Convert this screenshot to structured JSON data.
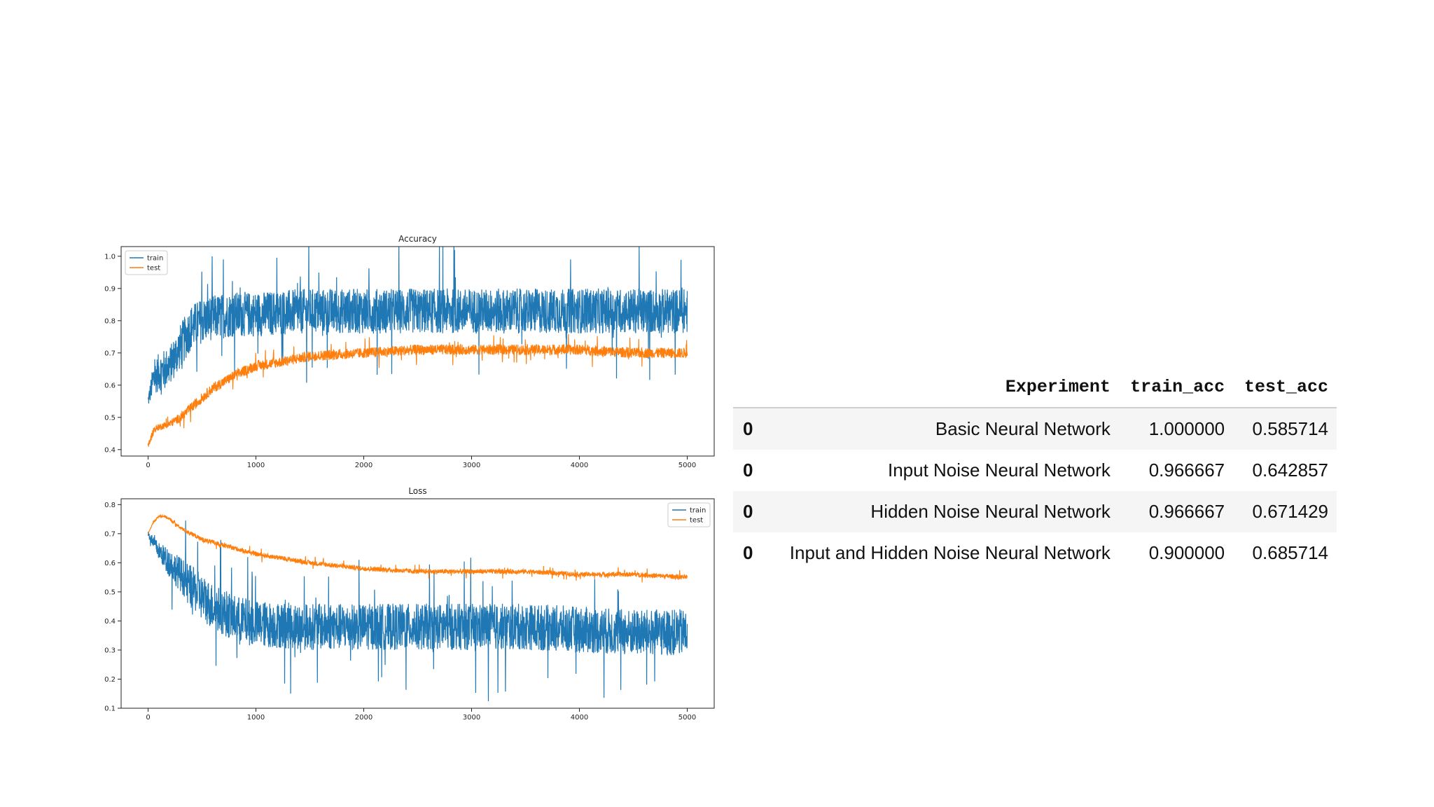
{
  "chart_data": [
    {
      "type": "line",
      "title": "Accuracy",
      "xlabel": "",
      "ylabel": "",
      "xlim": [
        -250,
        5250
      ],
      "ylim": [
        0.38,
        1.03
      ],
      "xticks": [
        0,
        1000,
        2000,
        3000,
        4000,
        5000
      ],
      "yticks": [
        0.4,
        0.5,
        0.6,
        0.7,
        0.8,
        0.9,
        1.0
      ],
      "xtick_labels": [
        "0",
        "1000",
        "2000",
        "3000",
        "4000",
        "5000"
      ],
      "ytick_labels": [
        "0.4",
        "0.5",
        "0.6",
        "0.7",
        "0.8",
        "0.9",
        "1.0"
      ],
      "legend_position": "upper-left",
      "series": [
        {
          "name": "train",
          "color": "#1f77b4",
          "x": [
            0,
            50,
            100,
            200,
            300,
            400,
            500,
            600,
            800,
            1000,
            1500,
            2000,
            2500,
            3000,
            3500,
            4000,
            4500,
            5000
          ],
          "y": [
            0.55,
            0.62,
            0.64,
            0.66,
            0.72,
            0.78,
            0.8,
            0.81,
            0.82,
            0.82,
            0.83,
            0.83,
            0.83,
            0.83,
            0.83,
            0.83,
            0.83,
            0.83
          ],
          "noise": [
            0.02,
            0.05,
            0.06,
            0.06,
            0.07,
            0.07,
            0.07,
            0.07,
            0.07,
            0.07,
            0.07,
            0.07,
            0.07,
            0.07,
            0.07,
            0.07,
            0.07,
            0.07
          ]
        },
        {
          "name": "test",
          "color": "#ff7f0e",
          "x": [
            0,
            50,
            100,
            200,
            300,
            400,
            500,
            600,
            800,
            1000,
            1200,
            1500,
            2000,
            2500,
            3000,
            3500,
            4000,
            4500,
            5000
          ],
          "y": [
            0.41,
            0.46,
            0.47,
            0.48,
            0.5,
            0.53,
            0.56,
            0.59,
            0.63,
            0.66,
            0.67,
            0.69,
            0.7,
            0.71,
            0.71,
            0.71,
            0.71,
            0.7,
            0.7
          ],
          "noise": [
            0.01,
            0.01,
            0.01,
            0.012,
            0.014,
            0.016,
            0.016,
            0.016,
            0.016,
            0.016,
            0.016,
            0.016,
            0.016,
            0.016,
            0.016,
            0.016,
            0.016,
            0.016,
            0.016
          ]
        }
      ]
    },
    {
      "type": "line",
      "title": "Loss",
      "xlabel": "",
      "ylabel": "",
      "xlim": [
        -250,
        5250
      ],
      "ylim": [
        0.1,
        0.82
      ],
      "xticks": [
        0,
        1000,
        2000,
        3000,
        4000,
        5000
      ],
      "yticks": [
        0.1,
        0.2,
        0.3,
        0.4,
        0.5,
        0.6,
        0.7,
        0.8
      ],
      "xtick_labels": [
        "0",
        "1000",
        "2000",
        "3000",
        "4000",
        "5000"
      ],
      "ytick_labels": [
        "0.1",
        "0.2",
        "0.3",
        "0.4",
        "0.5",
        "0.6",
        "0.7",
        "0.8"
      ],
      "legend_position": "upper-right",
      "series": [
        {
          "name": "train",
          "color": "#1f77b4",
          "x": [
            0,
            100,
            200,
            300,
            400,
            500,
            600,
            800,
            1000,
            1500,
            2000,
            2500,
            3000,
            3500,
            4000,
            4500,
            5000
          ],
          "y": [
            0.7,
            0.64,
            0.6,
            0.56,
            0.52,
            0.48,
            0.45,
            0.41,
            0.39,
            0.38,
            0.38,
            0.38,
            0.38,
            0.38,
            0.37,
            0.36,
            0.36
          ],
          "noise": [
            0.01,
            0.03,
            0.05,
            0.06,
            0.07,
            0.08,
            0.08,
            0.08,
            0.08,
            0.08,
            0.08,
            0.08,
            0.08,
            0.08,
            0.08,
            0.08,
            0.08
          ]
        },
        {
          "name": "test",
          "color": "#ff7f0e",
          "x": [
            0,
            50,
            100,
            150,
            200,
            300,
            400,
            500,
            600,
            800,
            1000,
            1500,
            2000,
            2500,
            3000,
            3500,
            4000,
            4500,
            5000
          ],
          "y": [
            0.7,
            0.74,
            0.76,
            0.76,
            0.75,
            0.72,
            0.7,
            0.68,
            0.67,
            0.65,
            0.63,
            0.6,
            0.58,
            0.57,
            0.57,
            0.57,
            0.56,
            0.56,
            0.55
          ],
          "noise": [
            0.0,
            0.003,
            0.003,
            0.004,
            0.005,
            0.006,
            0.007,
            0.008,
            0.008,
            0.008,
            0.008,
            0.008,
            0.008,
            0.008,
            0.008,
            0.008,
            0.008,
            0.008,
            0.008
          ]
        }
      ]
    }
  ],
  "table": {
    "columns": [
      "",
      "Experiment",
      "train_acc",
      "test_acc"
    ],
    "rows": [
      {
        "index": "0",
        "experiment": "Basic Neural Network",
        "train_acc": "1.000000",
        "test_acc": "0.585714"
      },
      {
        "index": "0",
        "experiment": "Input Noise Neural Network",
        "train_acc": "0.966667",
        "test_acc": "0.642857"
      },
      {
        "index": "0",
        "experiment": "Hidden Noise Neural Network",
        "train_acc": "0.966667",
        "test_acc": "0.671429"
      },
      {
        "index": "0",
        "experiment": "Input and Hidden Noise Neural Network",
        "train_acc": "0.900000",
        "test_acc": "0.685714"
      }
    ]
  }
}
